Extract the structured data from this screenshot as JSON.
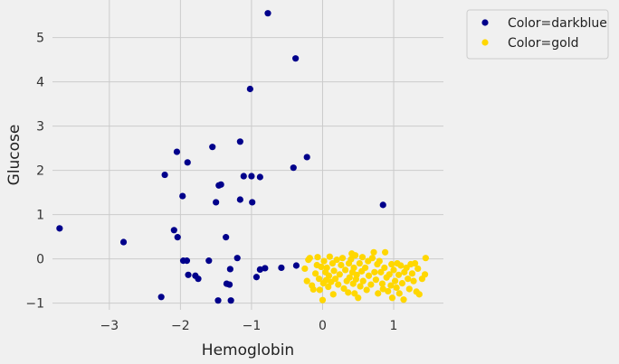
{
  "chart_data": {
    "type": "scatter",
    "xlabel": "Hemoglobin",
    "ylabel": "Glucose",
    "xlim": [
      -3.8,
      1.7
    ],
    "ylim": [
      -1.15,
      5.85
    ],
    "xticks": [
      -3,
      -2,
      -1,
      0,
      1
    ],
    "xtick_labels": [
      "−3",
      "−2",
      "−1",
      "0",
      "1"
    ],
    "yticks": [
      -1,
      0,
      1,
      2,
      3,
      4,
      5
    ],
    "ytick_labels": [
      "−1",
      "0",
      "1",
      "2",
      "3",
      "4",
      "5"
    ],
    "grid": true,
    "legend_position": "outside-top-right",
    "series": [
      {
        "name": "Color=darkblue",
        "color": "#00008b",
        "points": [
          [
            -3.7,
            0.69
          ],
          [
            -2.8,
            0.38
          ],
          [
            -2.27,
            -0.86
          ],
          [
            -2.22,
            1.9
          ],
          [
            -2.09,
            0.65
          ],
          [
            -2.05,
            2.42
          ],
          [
            -2.04,
            0.49
          ],
          [
            -1.97,
            1.42
          ],
          [
            -1.96,
            -0.04
          ],
          [
            -1.91,
            -0.04
          ],
          [
            -1.9,
            2.18
          ],
          [
            -1.89,
            -0.36
          ],
          [
            -1.79,
            -0.38
          ],
          [
            -1.75,
            -0.45
          ],
          [
            -1.6,
            -0.04
          ],
          [
            -1.55,
            2.53
          ],
          [
            -1.5,
            1.28
          ],
          [
            -1.47,
            -0.94
          ],
          [
            -1.46,
            1.66
          ],
          [
            -1.43,
            1.68
          ],
          [
            -1.36,
            0.49
          ],
          [
            -1.35,
            -0.56
          ],
          [
            -1.31,
            -0.58
          ],
          [
            -1.3,
            -0.23
          ],
          [
            -1.29,
            -0.94
          ],
          [
            -1.2,
            0.02
          ],
          [
            -1.16,
            2.65
          ],
          [
            -1.16,
            1.34
          ],
          [
            -1.11,
            1.87
          ],
          [
            -1.02,
            3.84
          ],
          [
            -1.0,
            1.87
          ],
          [
            -0.99,
            1.28
          ],
          [
            -0.93,
            -0.41
          ],
          [
            -0.88,
            -0.24
          ],
          [
            -0.88,
            1.85
          ],
          [
            -0.81,
            -0.21
          ],
          [
            -0.77,
            5.55
          ],
          [
            -0.58,
            -0.2
          ],
          [
            -0.41,
            2.06
          ],
          [
            -0.38,
            4.53
          ],
          [
            -0.37,
            -0.15
          ],
          [
            -0.22,
            2.3
          ],
          [
            0.85,
            1.22
          ]
        ]
      },
      {
        "name": "Color=gold",
        "color": "#ffd700",
        "points": [
          [
            -0.25,
            -0.22
          ],
          [
            -0.22,
            -0.5
          ],
          [
            -0.2,
            -0.02
          ],
          [
            -0.18,
            0.02
          ],
          [
            -0.15,
            -0.6
          ],
          [
            -0.13,
            -0.69
          ],
          [
            -0.1,
            -0.33
          ],
          [
            -0.08,
            -0.14
          ],
          [
            -0.07,
            0.04
          ],
          [
            -0.05,
            -0.45
          ],
          [
            -0.04,
            -0.7
          ],
          [
            -0.02,
            -0.18
          ],
          [
            0.0,
            -0.93
          ],
          [
            0.01,
            -0.55
          ],
          [
            0.02,
            -0.05
          ],
          [
            0.04,
            -0.3
          ],
          [
            0.05,
            -0.48
          ],
          [
            0.06,
            -0.2
          ],
          [
            0.08,
            -0.63
          ],
          [
            0.09,
            -0.38
          ],
          [
            0.1,
            0.05
          ],
          [
            0.12,
            -0.52
          ],
          [
            0.14,
            -0.1
          ],
          [
            0.15,
            -0.8
          ],
          [
            0.16,
            -0.27
          ],
          [
            0.18,
            -0.45
          ],
          [
            0.2,
            -0.02
          ],
          [
            0.22,
            -0.58
          ],
          [
            0.24,
            -0.35
          ],
          [
            0.26,
            -0.14
          ],
          [
            0.28,
            0.02
          ],
          [
            0.3,
            -0.67
          ],
          [
            0.32,
            -0.25
          ],
          [
            0.34,
            -0.5
          ],
          [
            0.36,
            -0.76
          ],
          [
            0.37,
            -0.1
          ],
          [
            0.38,
            -0.42
          ],
          [
            0.4,
            -0.01
          ],
          [
            0.41,
            0.12
          ],
          [
            0.42,
            -0.3
          ],
          [
            0.43,
            -0.56
          ],
          [
            0.44,
            -0.2
          ],
          [
            0.45,
            -0.78
          ],
          [
            0.46,
            0.08
          ],
          [
            0.47,
            -0.46
          ],
          [
            0.48,
            -0.36
          ],
          [
            0.5,
            -0.88
          ],
          [
            0.52,
            -0.1
          ],
          [
            0.53,
            -0.62
          ],
          [
            0.55,
            -0.28
          ],
          [
            0.56,
            0.04
          ],
          [
            0.57,
            -0.5
          ],
          [
            0.6,
            -0.2
          ],
          [
            0.62,
            -0.7
          ],
          [
            0.64,
            -0.05
          ],
          [
            0.65,
            -0.38
          ],
          [
            0.68,
            -0.58
          ],
          [
            0.7,
            0.02
          ],
          [
            0.72,
            0.15
          ],
          [
            0.73,
            -0.3
          ],
          [
            0.75,
            -0.47
          ],
          [
            0.77,
            -0.12
          ],
          [
            0.78,
            -0.78
          ],
          [
            0.8,
            -0.05
          ],
          [
            0.82,
            -0.3
          ],
          [
            0.84,
            -0.56
          ],
          [
            0.85,
            -0.68
          ],
          [
            0.87,
            -0.2
          ],
          [
            0.88,
            0.15
          ],
          [
            0.9,
            -0.42
          ],
          [
            0.92,
            -0.73
          ],
          [
            0.94,
            -0.35
          ],
          [
            0.96,
            -0.6
          ],
          [
            0.97,
            -0.12
          ],
          [
            0.98,
            -0.88
          ],
          [
            1.0,
            -0.25
          ],
          [
            1.02,
            -0.5
          ],
          [
            1.04,
            -0.65
          ],
          [
            1.05,
            -0.1
          ],
          [
            1.07,
            -0.36
          ],
          [
            1.08,
            -0.78
          ],
          [
            1.1,
            -0.15
          ],
          [
            1.12,
            -0.55
          ],
          [
            1.14,
            -0.92
          ],
          [
            1.15,
            -0.3
          ],
          [
            1.18,
            -0.2
          ],
          [
            1.2,
            -0.45
          ],
          [
            1.22,
            -0.68
          ],
          [
            1.24,
            -0.12
          ],
          [
            1.26,
            -0.33
          ],
          [
            1.28,
            -0.5
          ],
          [
            1.3,
            -0.1
          ],
          [
            1.32,
            -0.74
          ],
          [
            1.34,
            -0.22
          ],
          [
            1.36,
            -0.8
          ],
          [
            1.4,
            -0.45
          ],
          [
            1.44,
            -0.35
          ],
          [
            1.45,
            0.02
          ]
        ]
      }
    ]
  }
}
